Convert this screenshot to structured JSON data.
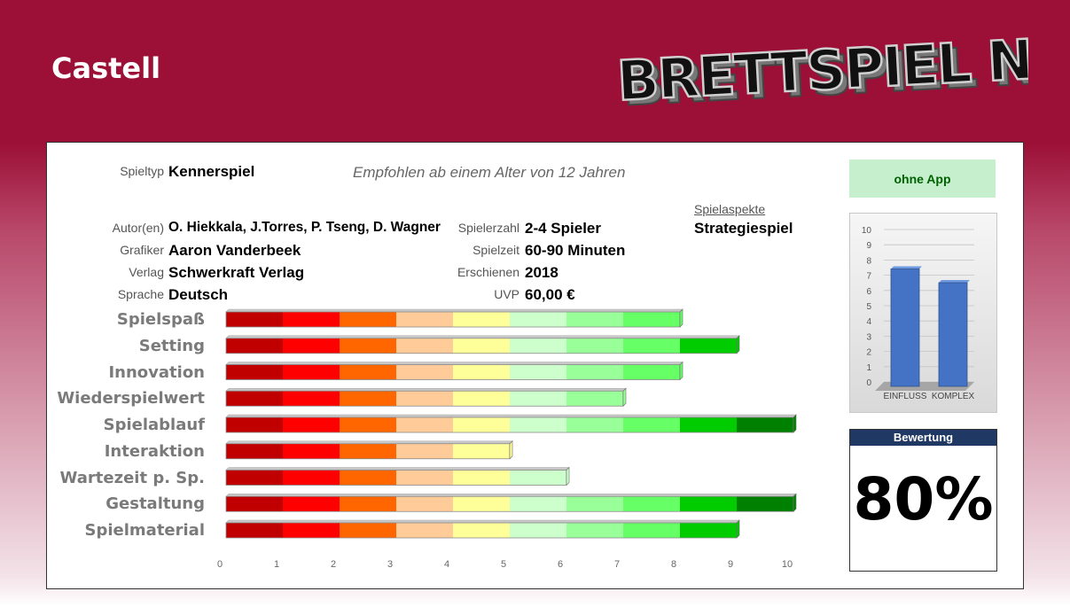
{
  "page": {
    "title": "Castell",
    "logo_text": "BRETTSPIEL NEWS"
  },
  "info": {
    "spieltyp_label": "Spieltyp",
    "spieltyp_value": "Kennerspiel",
    "recommendation": "Empfohlen ab einem Alter von 12 Jahren",
    "autor_label": "Autor(en)",
    "autor_value": "O. Hiekkala, J.Torres, P. Tseng, D. Wagner",
    "grafiker_label": "Grafiker",
    "grafiker_value": "Aaron Vanderbeek",
    "verlag_label": "Verlag",
    "verlag_value": "Schwerkraft Verlag",
    "sprache_label": "Sprache",
    "sprache_value": "Deutsch",
    "spielerzahl_label": "Spielerzahl",
    "spielerzahl_value": "2-4 Spieler",
    "spielzeit_label": "Spielzeit",
    "spielzeit_value": "60-90 Minuten",
    "erschienen_label": "Erschienen",
    "erschienen_value": "2018",
    "uvp_label": "UVP",
    "uvp_value": "60,00 €",
    "aspects_label": "Spielaspekte",
    "aspects_value": "Strategiespiel"
  },
  "app": {
    "label": "ohne App"
  },
  "rating": {
    "label": "Bewertung",
    "value": "80%"
  },
  "colors": {
    "header": "#9c0f36",
    "segments": [
      "#c00000",
      "#ff0000",
      "#ff6600",
      "#ffcc99",
      "#ffff99",
      "#ccffcc",
      "#99ff99",
      "#66ff66",
      "#00cc00",
      "#008000"
    ],
    "mini_bar": "#4472c4"
  },
  "chart_data": [
    {
      "type": "bar",
      "orientation": "horizontal",
      "categories": [
        "Spielspaß",
        "Setting",
        "Innovation",
        "Wiederspielwert",
        "Spielablauf",
        "Interaktion",
        "Wartezeit p. Sp.",
        "Gestaltung",
        "Spielmaterial"
      ],
      "values": [
        8,
        9,
        8,
        7,
        10,
        5,
        6,
        10,
        9
      ],
      "xlim": [
        0,
        10
      ],
      "xticks": [
        "0",
        "1",
        "2",
        "3",
        "4",
        "5",
        "6",
        "7",
        "8",
        "9",
        "10"
      ],
      "title": "",
      "xlabel": "",
      "ylabel": ""
    },
    {
      "type": "bar",
      "categories": [
        "EINFLUSS",
        "KOMPLEX"
      ],
      "values": [
        7.7,
        6.8
      ],
      "ylim": [
        0,
        10
      ],
      "yticks": [
        "0",
        "1",
        "2",
        "3",
        "4",
        "5",
        "6",
        "7",
        "8",
        "9",
        "10"
      ],
      "title": "",
      "xlabel": "",
      "ylabel": ""
    }
  ]
}
